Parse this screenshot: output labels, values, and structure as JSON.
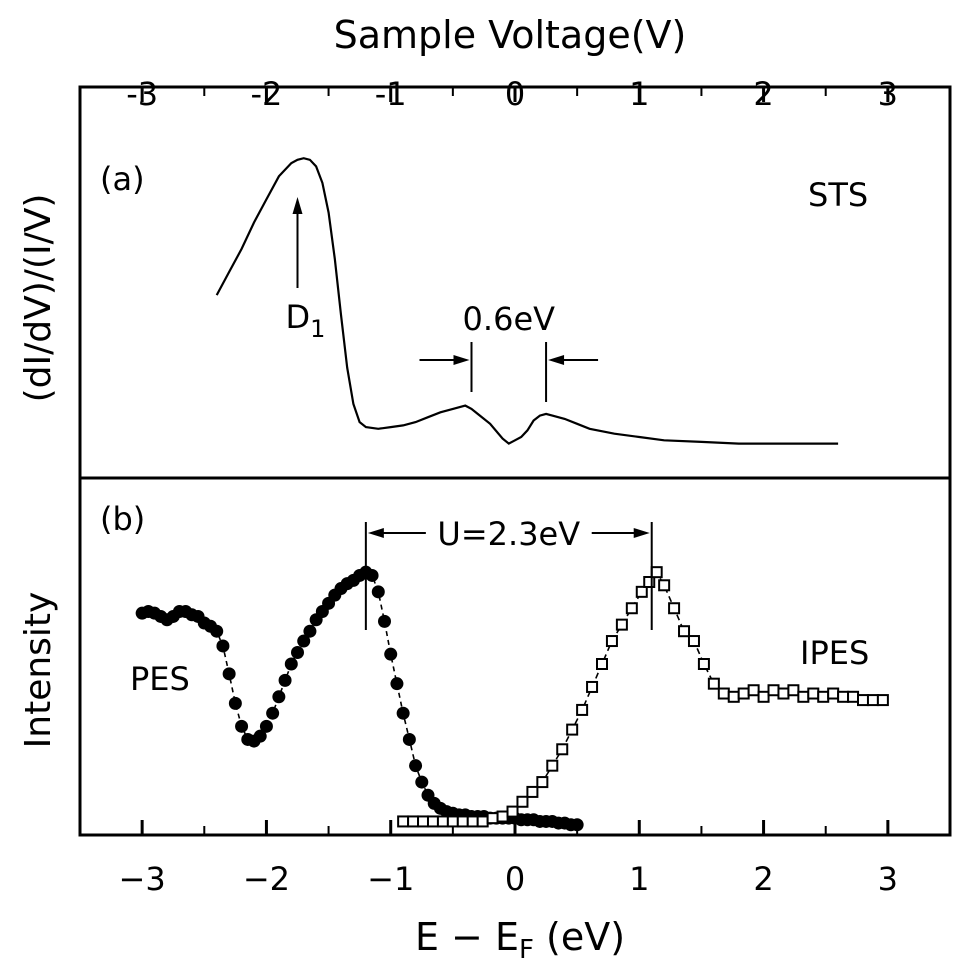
{
  "chart_data": [
    {
      "panel": "(a)",
      "type": "line",
      "label": "STS",
      "top_axis_title": "Sample Voltage(V)",
      "top_ticks": [
        "-3",
        "-2",
        "-1",
        "0",
        "1",
        "2",
        "3"
      ],
      "ylabel": "(dI/dV)/(I/V)",
      "xlim": [
        -3.5,
        3.5
      ],
      "ylim": [
        0,
        1
      ],
      "series": [
        {
          "x": [
            -2.4,
            -2.3,
            -2.2,
            -2.1,
            -2.0,
            -1.9,
            -1.8,
            -1.75,
            -1.7,
            -1.65,
            -1.6,
            -1.55,
            -1.5,
            -1.45,
            -1.4,
            -1.35,
            -1.3,
            -1.25,
            -1.2,
            -1.1,
            -1.0,
            -0.9,
            -0.8,
            -0.7,
            -0.6,
            -0.5,
            -0.4,
            -0.35,
            -0.3,
            -0.2,
            -0.1,
            -0.05,
            0.0,
            0.05,
            0.1,
            0.15,
            0.2,
            0.25,
            0.3,
            0.4,
            0.5,
            0.6,
            0.8,
            1.0,
            1.2,
            1.5,
            1.8,
            2.1,
            2.4,
            2.6
          ],
          "y": [
            0.53,
            0.6,
            0.67,
            0.75,
            0.82,
            0.89,
            0.93,
            0.94,
            0.945,
            0.94,
            0.92,
            0.87,
            0.78,
            0.64,
            0.47,
            0.31,
            0.2,
            0.145,
            0.13,
            0.125,
            0.13,
            0.135,
            0.145,
            0.16,
            0.175,
            0.185,
            0.195,
            0.185,
            0.17,
            0.14,
            0.095,
            0.08,
            0.09,
            0.1,
            0.12,
            0.15,
            0.165,
            0.17,
            0.165,
            0.155,
            0.14,
            0.125,
            0.11,
            0.1,
            0.09,
            0.085,
            0.08,
            0.08,
            0.08,
            0.08
          ]
        }
      ],
      "annotations": [
        {
          "text": "D",
          "sub": "1",
          "x": -1.75
        },
        {
          "text": "0.6eV",
          "x_from": -0.35,
          "x_to": 0.25
        }
      ]
    },
    {
      "panel": "(b)",
      "type": "scatter",
      "xlabel": "E − E",
      "xlabel_sub": "F",
      "xlabel_unit": " (eV)",
      "bottom_ticks": [
        "−3",
        "−2",
        "−1",
        "0",
        "1",
        "2",
        "3"
      ],
      "ylabel": "Intensity",
      "xlim": [
        -3.5,
        3.5
      ],
      "ylim": [
        0,
        1
      ],
      "annotations": [
        {
          "text": "U=2.3eV",
          "x_from": -1.2,
          "x_to": 1.1
        }
      ],
      "series": [
        {
          "name": "PES",
          "marker": "filled-circle",
          "x": [
            -3.0,
            -2.95,
            -2.9,
            -2.85,
            -2.8,
            -2.75,
            -2.7,
            -2.65,
            -2.6,
            -2.55,
            -2.5,
            -2.45,
            -2.4,
            -2.35,
            -2.3,
            -2.25,
            -2.2,
            -2.15,
            -2.1,
            -2.05,
            -2.0,
            -1.95,
            -1.9,
            -1.85,
            -1.8,
            -1.75,
            -1.7,
            -1.65,
            -1.6,
            -1.55,
            -1.5,
            -1.45,
            -1.4,
            -1.35,
            -1.3,
            -1.25,
            -1.2,
            -1.15,
            -1.1,
            -1.05,
            -1.0,
            -0.95,
            -0.9,
            -0.85,
            -0.8,
            -0.75,
            -0.7,
            -0.65,
            -0.6,
            -0.55,
            -0.5,
            -0.45,
            -0.4,
            -0.35,
            -0.3,
            -0.25,
            -0.2,
            -0.15,
            -0.1,
            -0.05,
            0.0,
            0.05,
            0.1,
            0.15,
            0.2,
            0.25,
            0.3,
            0.35,
            0.4,
            0.45,
            0.5
          ],
          "y": [
            0.655,
            0.66,
            0.655,
            0.645,
            0.635,
            0.645,
            0.66,
            0.66,
            0.65,
            0.645,
            0.625,
            0.615,
            0.6,
            0.555,
            0.47,
            0.38,
            0.31,
            0.27,
            0.265,
            0.28,
            0.31,
            0.35,
            0.4,
            0.45,
            0.5,
            0.535,
            0.57,
            0.6,
            0.635,
            0.66,
            0.685,
            0.71,
            0.73,
            0.745,
            0.755,
            0.77,
            0.78,
            0.77,
            0.72,
            0.63,
            0.53,
            0.44,
            0.35,
            0.27,
            0.19,
            0.14,
            0.1,
            0.075,
            0.06,
            0.05,
            0.045,
            0.04,
            0.04,
            0.035,
            0.035,
            0.035,
            0.03,
            0.03,
            0.03,
            0.03,
            0.03,
            0.025,
            0.025,
            0.025,
            0.02,
            0.02,
            0.02,
            0.015,
            0.015,
            0.01,
            0.01
          ]
        },
        {
          "name": "IPES",
          "marker": "open-square",
          "x": [
            -0.9,
            -0.82,
            -0.74,
            -0.66,
            -0.58,
            -0.5,
            -0.42,
            -0.34,
            -0.26,
            -0.18,
            -0.1,
            -0.02,
            0.06,
            0.14,
            0.22,
            0.3,
            0.38,
            0.46,
            0.54,
            0.62,
            0.7,
            0.78,
            0.86,
            0.94,
            1.02,
            1.08,
            1.14,
            1.2,
            1.28,
            1.36,
            1.44,
            1.52,
            1.6,
            1.68,
            1.76,
            1.84,
            1.92,
            2.0,
            2.08,
            2.16,
            2.24,
            2.32,
            2.4,
            2.48,
            2.56,
            2.64,
            2.72,
            2.8,
            2.88,
            2.96
          ],
          "y": [
            0.02,
            0.02,
            0.02,
            0.02,
            0.02,
            0.02,
            0.02,
            0.02,
            0.02,
            0.03,
            0.035,
            0.05,
            0.08,
            0.11,
            0.14,
            0.19,
            0.24,
            0.3,
            0.36,
            0.43,
            0.5,
            0.57,
            0.62,
            0.67,
            0.72,
            0.75,
            0.78,
            0.74,
            0.67,
            0.6,
            0.57,
            0.5,
            0.44,
            0.41,
            0.4,
            0.41,
            0.42,
            0.4,
            0.42,
            0.41,
            0.42,
            0.4,
            0.41,
            0.4,
            0.41,
            0.4,
            0.4,
            0.39,
            0.39,
            0.39
          ]
        }
      ]
    }
  ]
}
